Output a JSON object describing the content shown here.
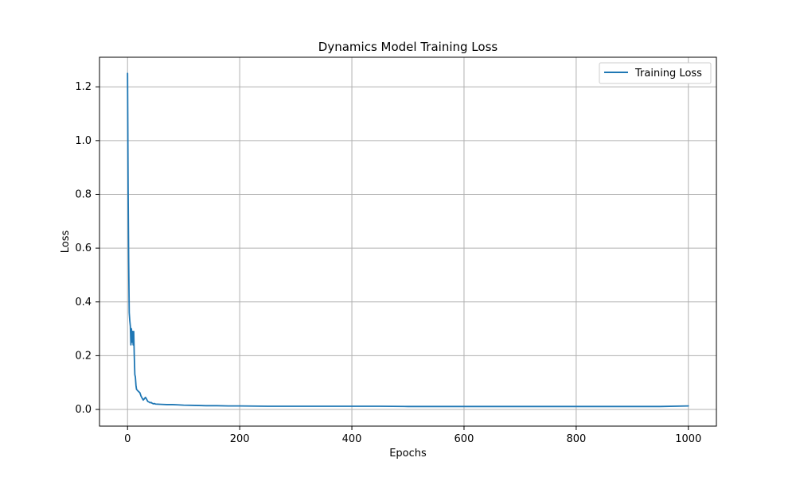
{
  "chart_data": {
    "type": "line",
    "title": "Dynamics Model Training Loss",
    "xlabel": "Epochs",
    "ylabel": "Loss",
    "xlim": [
      -50,
      1050
    ],
    "ylim": [
      -0.062,
      1.31
    ],
    "x_ticks": [
      0,
      200,
      400,
      600,
      800,
      1000
    ],
    "y_ticks": [
      0.0,
      0.2,
      0.4,
      0.6,
      0.8,
      1.0,
      1.2
    ],
    "x_tick_labels": [
      "0",
      "200",
      "400",
      "600",
      "800",
      "1000"
    ],
    "y_tick_labels": [
      "0.0",
      "0.2",
      "0.4",
      "0.6",
      "0.8",
      "1.0",
      "1.2"
    ],
    "grid": true,
    "legend_position": "top-right",
    "series": [
      {
        "name": "Training Loss",
        "color": "#1f77b4",
        "points": [
          [
            0,
            1.25
          ],
          [
            1,
            0.82
          ],
          [
            2,
            0.55
          ],
          [
            3,
            0.36
          ],
          [
            4,
            0.33
          ],
          [
            5,
            0.31
          ],
          [
            6,
            0.24
          ],
          [
            7,
            0.3
          ],
          [
            8,
            0.25
          ],
          [
            9,
            0.29
          ],
          [
            10,
            0.24
          ],
          [
            11,
            0.29
          ],
          [
            12,
            0.2
          ],
          [
            13,
            0.13
          ],
          [
            14,
            0.12
          ],
          [
            15,
            0.09
          ],
          [
            16,
            0.075
          ],
          [
            18,
            0.07
          ],
          [
            20,
            0.066
          ],
          [
            22,
            0.062
          ],
          [
            24,
            0.05
          ],
          [
            26,
            0.042
          ],
          [
            28,
            0.035
          ],
          [
            30,
            0.04
          ],
          [
            32,
            0.045
          ],
          [
            34,
            0.038
          ],
          [
            36,
            0.03
          ],
          [
            38,
            0.028
          ],
          [
            40,
            0.025
          ],
          [
            42,
            0.026
          ],
          [
            44,
            0.023
          ],
          [
            46,
            0.021
          ],
          [
            48,
            0.022
          ],
          [
            50,
            0.02
          ],
          [
            60,
            0.019
          ],
          [
            70,
            0.018
          ],
          [
            80,
            0.018
          ],
          [
            90,
            0.017
          ],
          [
            100,
            0.016
          ],
          [
            120,
            0.015
          ],
          [
            140,
            0.014
          ],
          [
            160,
            0.014
          ],
          [
            180,
            0.013
          ],
          [
            200,
            0.013
          ],
          [
            250,
            0.012
          ],
          [
            300,
            0.012
          ],
          [
            350,
            0.012
          ],
          [
            400,
            0.012
          ],
          [
            450,
            0.012
          ],
          [
            500,
            0.011
          ],
          [
            550,
            0.011
          ],
          [
            600,
            0.011
          ],
          [
            650,
            0.011
          ],
          [
            700,
            0.011
          ],
          [
            750,
            0.011
          ],
          [
            800,
            0.011
          ],
          [
            850,
            0.011
          ],
          [
            900,
            0.011
          ],
          [
            950,
            0.011
          ],
          [
            1000,
            0.013
          ]
        ]
      }
    ]
  }
}
